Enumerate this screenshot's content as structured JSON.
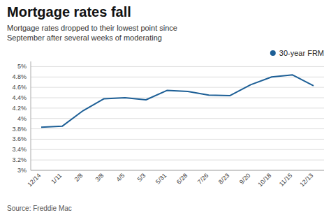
{
  "chart_data": {
    "type": "line",
    "title": "Mortgage rates fall",
    "subtitle": "Mortgage rates dropped to their lowest point since\nSeptember after several weeks of moderating",
    "source": "Source: Freddie Mac",
    "categories": [
      "12/14",
      "1/11",
      "2/8",
      "3/8",
      "4/5",
      "5/3",
      "5/31",
      "6/28",
      "7/26",
      "8/23",
      "9/20",
      "10/18",
      "11/15",
      "12/13"
    ],
    "series": [
      {
        "name": "30-year FRM",
        "color": "#1d5f96",
        "values": [
          3.83,
          3.85,
          4.15,
          4.38,
          4.4,
          4.36,
          4.54,
          4.52,
          4.45,
          4.44,
          4.65,
          4.8,
          4.84,
          4.63
        ]
      }
    ],
    "ylim": [
      3.0,
      5.1
    ],
    "yticks": [
      {
        "value": 3.0,
        "label": "3%"
      },
      {
        "value": 3.2,
        "label": "3.2%"
      },
      {
        "value": 3.4,
        "label": "3.4%"
      },
      {
        "value": 3.6,
        "label": "3.6%"
      },
      {
        "value": 3.8,
        "label": "3.8%"
      },
      {
        "value": 4.0,
        "label": "4%"
      },
      {
        "value": 4.2,
        "label": "4.2%"
      },
      {
        "value": 4.4,
        "label": "4.4%"
      },
      {
        "value": 4.6,
        "label": "4.6%"
      },
      {
        "value": 4.8,
        "label": "4.8%"
      },
      {
        "value": 5.0,
        "label": "5%"
      }
    ],
    "grid": true,
    "legend": "upper right"
  }
}
